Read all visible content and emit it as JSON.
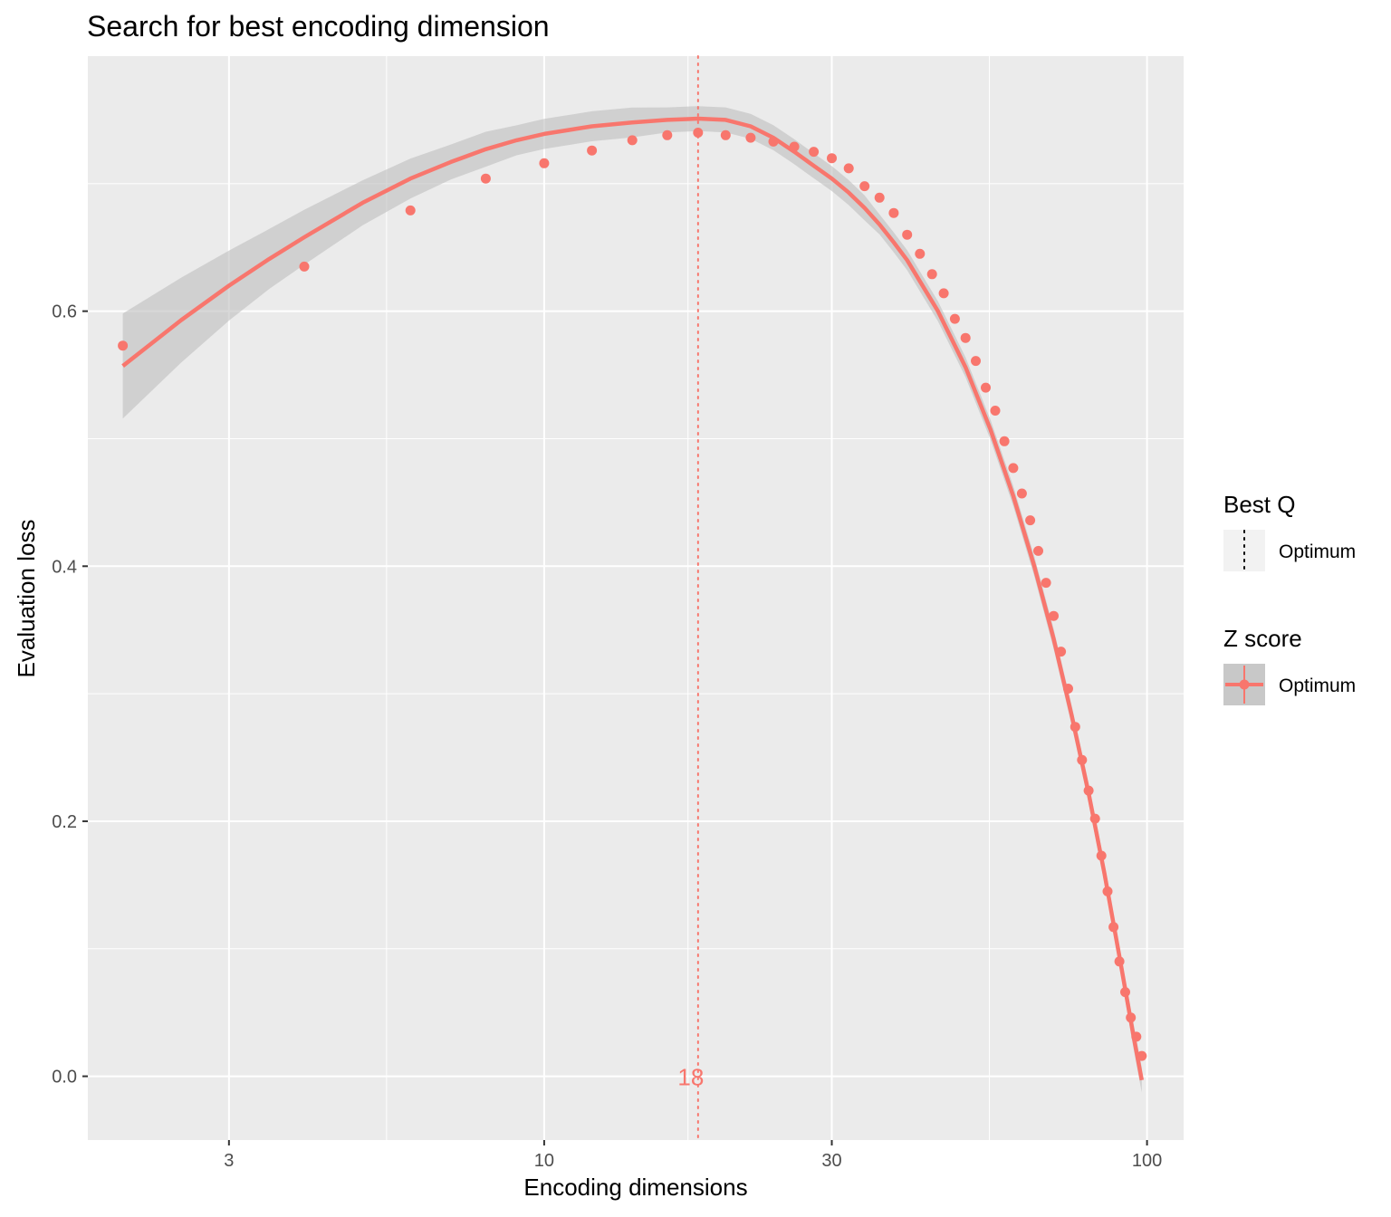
{
  "chart_data": {
    "type": "scatter",
    "title": "Search for best encoding dimension",
    "xlabel": "Encoding dimensions",
    "ylabel": "Evaluation loss",
    "x_scale": "log10",
    "xlim": [
      1.75,
      115
    ],
    "ylim": [
      -0.05,
      0.8
    ],
    "x_ticks": [
      3,
      10,
      30,
      100
    ],
    "x_tick_labels": [
      "3",
      "10",
      "30",
      "100"
    ],
    "y_ticks": [
      0.0,
      0.2,
      0.4,
      0.6
    ],
    "y_tick_labels": [
      "0.0",
      "0.2",
      "0.4",
      "0.6"
    ],
    "grid": true,
    "colors": {
      "series": "#f8766d",
      "ribbon": "#bebebe",
      "panel": "#ebebeb",
      "grid": "#ffffff"
    },
    "points": {
      "x": [
        2,
        4,
        6,
        8,
        10,
        12,
        14,
        16,
        18,
        20,
        22,
        24,
        26,
        28,
        30,
        32,
        34,
        36,
        38,
        40,
        42,
        44,
        46,
        48,
        50,
        52,
        54,
        56,
        58,
        60,
        62,
        64,
        66,
        68,
        70,
        72,
        74,
        76,
        78,
        80,
        82,
        84,
        86,
        88,
        90,
        92,
        94,
        96,
        98
      ],
      "y": [
        0.573,
        0.635,
        0.679,
        0.704,
        0.716,
        0.726,
        0.734,
        0.738,
        0.74,
        0.738,
        0.736,
        0.733,
        0.729,
        0.725,
        0.72,
        0.712,
        0.698,
        0.689,
        0.677,
        0.66,
        0.645,
        0.629,
        0.614,
        0.594,
        0.579,
        0.561,
        0.54,
        0.522,
        0.498,
        0.477,
        0.457,
        0.436,
        0.412,
        0.387,
        0.361,
        0.333,
        0.304,
        0.274,
        0.248,
        0.224,
        0.202,
        0.173,
        0.145,
        0.117,
        0.09,
        0.066,
        0.046,
        0.031,
        0.016
      ]
    },
    "smooth": {
      "x": [
        2,
        2.5,
        3,
        3.5,
        4,
        5,
        6,
        7,
        8,
        9,
        10,
        12,
        14,
        16,
        18,
        20,
        22,
        24,
        26,
        28,
        30,
        32,
        34,
        36,
        38,
        40,
        45,
        50,
        55,
        60,
        65,
        70,
        75,
        80,
        85,
        90,
        95,
        98
      ],
      "y": [
        0.557,
        0.593,
        0.62,
        0.641,
        0.658,
        0.685,
        0.704,
        0.717,
        0.727,
        0.734,
        0.739,
        0.745,
        0.748,
        0.75,
        0.751,
        0.75,
        0.745,
        0.736,
        0.725,
        0.714,
        0.704,
        0.693,
        0.681,
        0.668,
        0.654,
        0.64,
        0.6,
        0.556,
        0.507,
        0.455,
        0.4,
        0.343,
        0.283,
        0.222,
        0.159,
        0.094,
        0.031,
        -0.003
      ],
      "se": [
        0.021,
        0.017,
        0.014,
        0.012,
        0.011,
        0.009,
        0.008,
        0.007,
        0.007,
        0.006,
        0.006,
        0.006,
        0.006,
        0.005,
        0.005,
        0.005,
        0.005,
        0.005,
        0.005,
        0.005,
        0.005,
        0.005,
        0.005,
        0.004,
        0.004,
        0.004,
        0.004,
        0.004,
        0.004,
        0.004,
        0.004,
        0.004,
        0.004,
        0.004,
        0.004,
        0.004,
        0.005,
        0.005
      ]
    },
    "optimum": {
      "x": 18,
      "label": "18"
    },
    "legends": [
      {
        "title": "Best Q",
        "label": "Optimum",
        "key": "dotted-vline"
      },
      {
        "title": "Z score",
        "label": "Optimum",
        "key": "point-line-ribbon"
      }
    ]
  }
}
